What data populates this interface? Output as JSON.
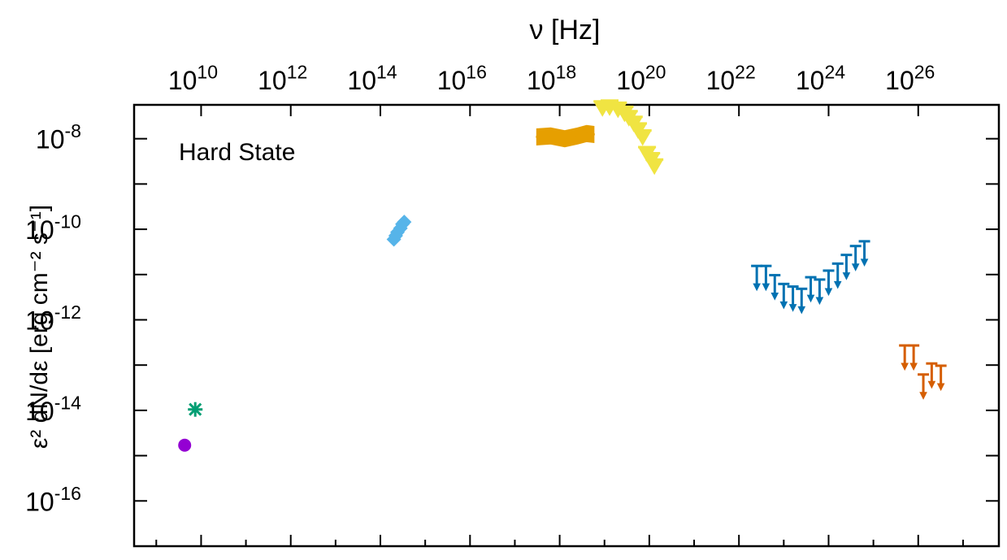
{
  "chart_data": {
    "type": "scatter",
    "title": "",
    "annotation": "Hard State",
    "xlabel": "ν [Hz]",
    "ylabel": "ε² dN/dε [erg cm⁻² s⁻¹]",
    "x_scale": "log",
    "y_scale": "log",
    "xlim": [
      320000000.0,
      6.3e+27
    ],
    "ylim": [
      1e-17,
      5.6e-08
    ],
    "x_ticks": [
      10000000000.0,
      1000000000000.0,
      100000000000000.0,
      1e+16,
      1e+18,
      1e+20,
      1e+22,
      1e+24,
      1e+26
    ],
    "x_tick_labels": [
      {
        "base": "10",
        "exp": "10"
      },
      {
        "base": "10",
        "exp": "12"
      },
      {
        "base": "10",
        "exp": "14"
      },
      {
        "base": "10",
        "exp": "16"
      },
      {
        "base": "10",
        "exp": "18"
      },
      {
        "base": "10",
        "exp": "20"
      },
      {
        "base": "10",
        "exp": "22"
      },
      {
        "base": "10",
        "exp": "24"
      },
      {
        "base": "10",
        "exp": "26"
      }
    ],
    "y_ticks": [
      1e-08,
      1e-10,
      1e-12,
      1e-14,
      1e-16
    ],
    "y_tick_labels": [
      {
        "base": "10",
        "exp": "-8"
      },
      {
        "base": "10",
        "exp": "-10"
      },
      {
        "base": "10",
        "exp": "-12"
      },
      {
        "base": "10",
        "exp": "-14"
      },
      {
        "base": "10",
        "exp": "-16"
      }
    ],
    "grid": false,
    "series": [
      {
        "marker": "circle",
        "color": "#9400D3",
        "points": [
          [
            4300000000.0,
            1.7e-15
          ]
        ]
      },
      {
        "marker": "asterisk",
        "color": "#009E73",
        "points": [
          [
            7400000000.0,
            1.05e-14
          ]
        ]
      },
      {
        "marker": "diamond",
        "color": "#56B4E9",
        "points": [
          [
            200000000000000.0,
            6e-11
          ],
          [
            220000000000000.0,
            7.2e-11
          ],
          [
            240000000000000.0,
            8.6e-11
          ],
          [
            280000000000000.0,
            1.05e-10
          ],
          [
            310000000000000.0,
            1.3e-10
          ],
          [
            340000000000000.0,
            1.45e-10
          ]
        ]
      },
      {
        "marker": "band",
        "color": "#E69F00",
        "points": [
          [
            3.2e+17,
            1.1e-08
          ],
          [
            6.3e+17,
            1.15e-08
          ],
          [
            1.3e+18,
            1e-08
          ],
          [
            2.5e+18,
            1.15e-08
          ],
          [
            4e+18,
            1.3e-08
          ],
          [
            5.6e+18,
            1.25e-08
          ]
        ]
      },
      {
        "marker": "triangle-down",
        "color": "#F0E442",
        "points": [
          [
            9e+18,
            4.6e-08
          ],
          [
            1.3e+19,
            4.8e-08
          ],
          [
            2e+19,
            4.3e-08
          ],
          [
            2.8e+19,
            3.5e-08
          ],
          [
            3.5e+19,
            2.8e-08
          ],
          [
            4.5e+19,
            2.1e-08
          ],
          [
            5.6e+19,
            1.5e-08
          ],
          [
            7.1e+19,
            1.05e-08
          ],
          [
            8.9e+19,
            4.5e-09
          ],
          [
            1.1e+20,
            3.3e-09
          ],
          [
            1.3e+20,
            2.4e-09
          ]
        ]
      },
      {
        "marker": "upper-limit",
        "color": "#0072B2",
        "points": [
          [
            2.5e+22,
            8e-12
          ],
          [
            4e+22,
            8e-12
          ],
          [
            6.3e+22,
            5e-12
          ],
          [
            1e+23,
            3.2e-12
          ],
          [
            1.6e+23,
            2.8e-12
          ],
          [
            2.5e+23,
            2.5e-12
          ],
          [
            4e+23,
            4.5e-12
          ],
          [
            6.3e+23,
            4e-12
          ],
          [
            1e+24,
            6.3e-12
          ],
          [
            1.6e+24,
            9e-12
          ],
          [
            2.5e+24,
            1.4e-11
          ],
          [
            4e+24,
            2.2e-11
          ],
          [
            6.3e+24,
            2.8e-11
          ]
        ]
      },
      {
        "marker": "upper-limit",
        "color": "#D55E00",
        "points": [
          [
            5e+25,
            1.4e-13
          ],
          [
            7.9e+25,
            1.4e-13
          ],
          [
            1.3e+26,
            3.2e-14
          ],
          [
            2e+26,
            5.6e-14
          ],
          [
            3.2e+26,
            5e-14
          ]
        ]
      }
    ]
  }
}
